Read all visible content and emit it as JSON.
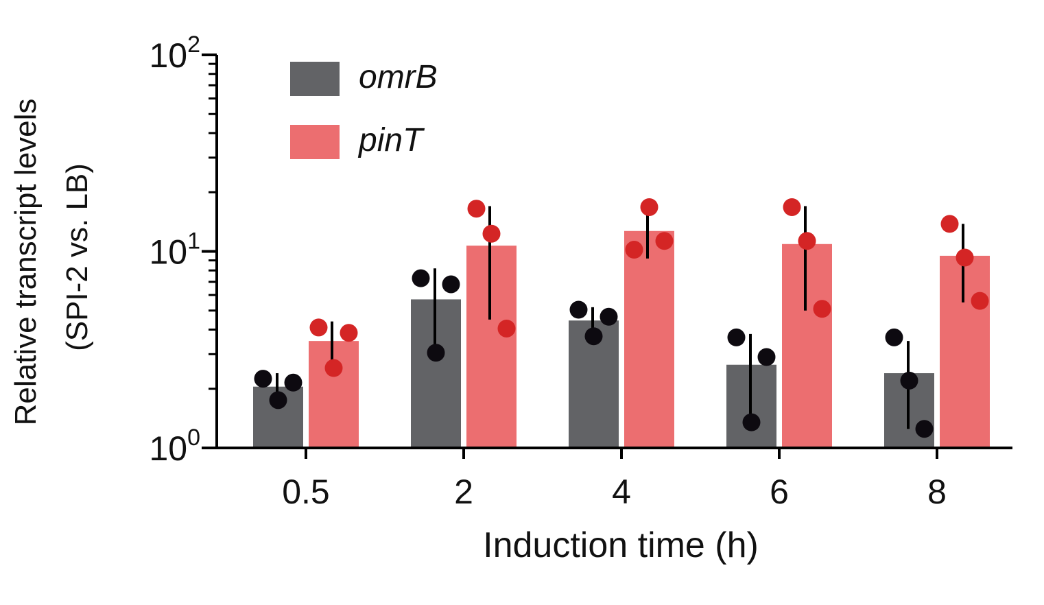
{
  "chart_data": {
    "type": "bar",
    "y_scale": "log",
    "ylim": [
      1,
      100
    ],
    "y_ticks": [
      {
        "value": 1,
        "base": "10",
        "exp": "0"
      },
      {
        "value": 10,
        "base": "10",
        "exp": "1"
      },
      {
        "value": 100,
        "base": "10",
        "exp": "2"
      }
    ],
    "ylabel_line1": "Relative transcript levels",
    "ylabel_line2": "(SPI-2 vs. LB)",
    "xlabel": "Induction time (h)",
    "categories": [
      "0.5",
      "2",
      "4",
      "6",
      "8"
    ],
    "legend_position": "top-left",
    "grid": false,
    "series": [
      {
        "name": "omrB",
        "color": "#626366",
        "dot_color": "#0d0a10",
        "values": [
          2.05,
          5.7,
          4.45,
          2.65,
          2.4
        ],
        "err_low": [
          1.75,
          3.1,
          3.8,
          1.35,
          1.25
        ],
        "err_high": [
          2.4,
          8.2,
          5.2,
          3.8,
          3.5
        ],
        "points": [
          [
            2.25,
            1.75,
            2.15
          ],
          [
            7.3,
            3.05,
            6.8
          ],
          [
            5.05,
            3.7,
            4.65
          ],
          [
            3.65,
            1.35,
            2.9
          ],
          [
            3.65,
            2.2,
            1.25
          ]
        ]
      },
      {
        "name": "pinT",
        "color": "#ec6e70",
        "dot_color": "#d42525",
        "values": [
          3.5,
          10.7,
          12.7,
          10.9,
          9.5
        ],
        "err_low": [
          2.55,
          4.5,
          9.2,
          5.0,
          5.5
        ],
        "err_high": [
          4.4,
          17.0,
          16.5,
          17.0,
          13.8
        ],
        "points": [
          [
            4.1,
            2.55,
            3.85
          ],
          [
            16.5,
            12.3,
            4.05
          ],
          [
            10.2,
            16.8,
            11.3
          ],
          [
            16.8,
            11.3,
            5.1
          ],
          [
            13.8,
            9.3,
            5.6
          ]
        ]
      }
    ]
  }
}
